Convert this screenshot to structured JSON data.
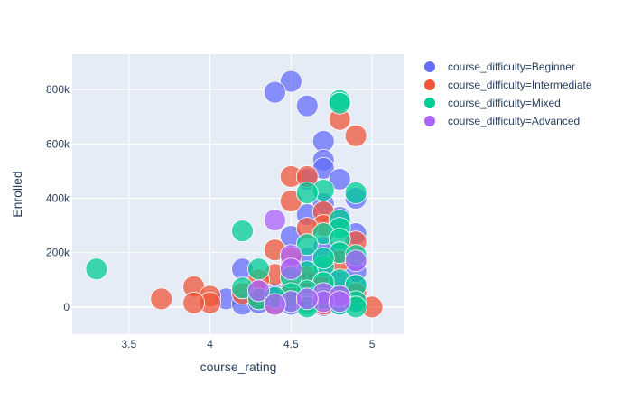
{
  "chart_data": {
    "type": "scatter",
    "xlabel": "course_rating",
    "ylabel": "Enrolled",
    "xlim": [
      3.15,
      5.2
    ],
    "ylim": [
      -100000,
      930000
    ],
    "x_ticks": [
      3.5,
      4,
      4.5,
      5
    ],
    "x_tick_labels": [
      "3.5",
      "4",
      "4.5",
      "5"
    ],
    "y_ticks": [
      0,
      200000,
      400000,
      600000,
      800000
    ],
    "y_tick_labels": [
      "0",
      "200k",
      "400k",
      "600k",
      "800k"
    ],
    "grid": true,
    "legend_position": "right",
    "plot_background": "#e5ecf6",
    "series": [
      {
        "name": "course_difficulty=Beginner",
        "color": "#636efa",
        "points": [
          [
            4.5,
            830000
          ],
          [
            4.4,
            790000
          ],
          [
            4.6,
            740000
          ],
          [
            4.7,
            610000
          ],
          [
            4.7,
            540000
          ],
          [
            4.7,
            510000
          ],
          [
            4.8,
            470000
          ],
          [
            4.6,
            470000
          ],
          [
            4.9,
            400000
          ],
          [
            4.7,
            380000
          ],
          [
            4.6,
            340000
          ],
          [
            4.8,
            330000
          ],
          [
            4.9,
            270000
          ],
          [
            4.5,
            260000
          ],
          [
            4.7,
            220000
          ],
          [
            4.8,
            200000
          ],
          [
            4.6,
            180000
          ],
          [
            4.9,
            170000
          ],
          [
            4.5,
            150000
          ],
          [
            4.2,
            140000
          ],
          [
            4.7,
            130000
          ],
          [
            4.8,
            100000
          ],
          [
            4.6,
            90000
          ],
          [
            4.9,
            80000
          ],
          [
            4.5,
            70000
          ],
          [
            4.3,
            60000
          ],
          [
            4.4,
            50000
          ],
          [
            4.7,
            40000
          ],
          [
            4.8,
            30000
          ],
          [
            4.1,
            30000
          ],
          [
            4.6,
            20000
          ],
          [
            4.9,
            20000
          ],
          [
            4.2,
            10000
          ],
          [
            4.5,
            10000
          ],
          [
            4.7,
            5000
          ],
          [
            4.3,
            15000
          ],
          [
            4.8,
            10000
          ],
          [
            4.4,
            40000
          ],
          [
            4.6,
            60000
          ],
          [
            4.9,
            130000
          ]
        ]
      },
      {
        "name": "course_difficulty=Intermediate",
        "color": "#EF553B",
        "points": [
          [
            4.8,
            690000
          ],
          [
            4.9,
            630000
          ],
          [
            4.5,
            480000
          ],
          [
            4.6,
            480000
          ],
          [
            4.5,
            390000
          ],
          [
            4.7,
            350000
          ],
          [
            4.7,
            300000
          ],
          [
            4.6,
            290000
          ],
          [
            4.9,
            240000
          ],
          [
            4.4,
            210000
          ],
          [
            4.5,
            180000
          ],
          [
            4.8,
            170000
          ],
          [
            4.4,
            120000
          ],
          [
            4.6,
            110000
          ],
          [
            4.3,
            100000
          ],
          [
            4.7,
            80000
          ],
          [
            3.9,
            75000
          ],
          [
            4.5,
            60000
          ],
          [
            4.2,
            50000
          ],
          [
            4.0,
            40000
          ],
          [
            4.8,
            40000
          ],
          [
            3.7,
            30000
          ],
          [
            4.0,
            15000
          ],
          [
            3.9,
            15000
          ],
          [
            4.6,
            20000
          ],
          [
            4.4,
            10000
          ],
          [
            5.0,
            0
          ],
          [
            4.3,
            30000
          ],
          [
            4.7,
            10000
          ],
          [
            4.9,
            50000
          ]
        ]
      },
      {
        "name": "course_difficulty=Mixed",
        "color": "#00cc96",
        "points": [
          [
            4.8,
            760000
          ],
          [
            4.8,
            750000
          ],
          [
            4.7,
            430000
          ],
          [
            4.6,
            420000
          ],
          [
            4.9,
            420000
          ],
          [
            4.8,
            320000
          ],
          [
            4.8,
            290000
          ],
          [
            4.2,
            280000
          ],
          [
            4.7,
            270000
          ],
          [
            4.8,
            250000
          ],
          [
            4.6,
            230000
          ],
          [
            4.8,
            200000
          ],
          [
            4.9,
            190000
          ],
          [
            4.7,
            150000
          ],
          [
            3.3,
            140000
          ],
          [
            4.3,
            140000
          ],
          [
            4.6,
            130000
          ],
          [
            4.5,
            110000
          ],
          [
            4.8,
            100000
          ],
          [
            4.7,
            90000
          ],
          [
            4.9,
            80000
          ],
          [
            4.2,
            70000
          ],
          [
            4.6,
            60000
          ],
          [
            4.5,
            50000
          ],
          [
            4.8,
            40000
          ],
          [
            4.3,
            30000
          ],
          [
            4.7,
            30000
          ],
          [
            4.9,
            20000
          ],
          [
            4.6,
            10000
          ],
          [
            4.8,
            10000
          ],
          [
            4.5,
            20000
          ],
          [
            4.4,
            35000
          ],
          [
            4.7,
            180000
          ],
          [
            4.9,
            0
          ],
          [
            4.6,
            0
          ]
        ]
      },
      {
        "name": "course_difficulty=Advanced",
        "color": "#ab63fa",
        "points": [
          [
            4.4,
            320000
          ],
          [
            4.5,
            190000
          ],
          [
            4.9,
            170000
          ],
          [
            4.5,
            140000
          ],
          [
            4.3,
            60000
          ],
          [
            4.7,
            50000
          ],
          [
            4.8,
            40000
          ],
          [
            4.5,
            20000
          ],
          [
            4.7,
            20000
          ],
          [
            4.8,
            20000
          ],
          [
            4.4,
            10000
          ],
          [
            4.6,
            30000
          ]
        ]
      }
    ]
  }
}
